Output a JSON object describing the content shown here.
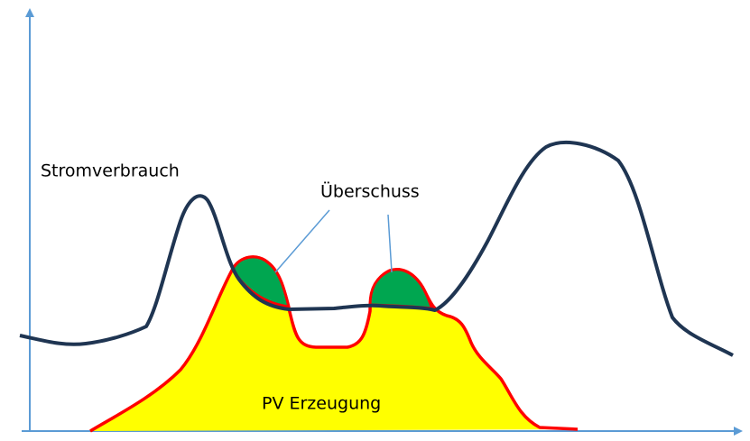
{
  "labels": {
    "consumption": "Stromverbrauch",
    "surplus": "Überschuss",
    "pv": "PV Erzeugung"
  }
}
